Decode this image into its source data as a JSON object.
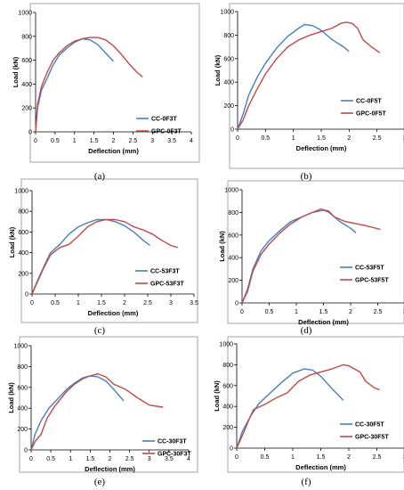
{
  "figure": {
    "captions": [
      "(a)",
      "(b)",
      "(c)",
      "(d)",
      "(e)",
      "(f)"
    ]
  },
  "colors": {
    "blue": "#4a7ebb",
    "red": "#be4b48",
    "frame": "#a6a6a6",
    "axis": "#000000"
  },
  "chart_data": [
    {
      "type": "line",
      "caption": "(a)",
      "xlabel": "Deflection (mm)",
      "ylabel": "Load (kN)",
      "xlim": [
        0,
        4
      ],
      "ylim": [
        0,
        1000
      ],
      "xticks": [
        "0",
        "0.5",
        "1",
        "1.5",
        "2",
        "2.5",
        "3",
        "3.5",
        "4"
      ],
      "yticks": [
        "0",
        "200",
        "400",
        "600",
        "800",
        "1000"
      ],
      "legend": "right",
      "series": [
        {
          "name": "CC-0F3T",
          "color": "blue",
          "x": [
            0,
            0.05,
            0.15,
            0.3,
            0.45,
            0.6,
            0.8,
            1.0,
            1.2,
            1.4,
            1.6,
            1.8,
            2.0
          ],
          "y": [
            0,
            200,
            350,
            450,
            560,
            640,
            700,
            750,
            780,
            770,
            730,
            660,
            590
          ]
        },
        {
          "name": "GPC-0F3T",
          "color": "red",
          "x": [
            0,
            0.05,
            0.15,
            0.3,
            0.45,
            0.6,
            0.8,
            1.0,
            1.2,
            1.4,
            1.6,
            1.8,
            2.0,
            2.2,
            2.4,
            2.6,
            2.75
          ],
          "y": [
            0,
            230,
            380,
            500,
            600,
            660,
            720,
            760,
            780,
            790,
            790,
            770,
            720,
            650,
            570,
            500,
            460
          ]
        }
      ]
    },
    {
      "type": "line",
      "caption": "(b)",
      "xlabel": "Deflection (mm)",
      "ylabel": "Load (kN)",
      "xlim": [
        0,
        3
      ],
      "ylim": [
        0,
        1000
      ],
      "xticks": [
        "0",
        "0.5",
        "1",
        "1.5",
        "2",
        "2.5",
        "3"
      ],
      "yticks": [
        "0",
        "200",
        "400",
        "600",
        "800",
        "1000"
      ],
      "legend": "right",
      "series": [
        {
          "name": "CC-0F5T",
          "color": "blue",
          "x": [
            0,
            0.1,
            0.2,
            0.35,
            0.5,
            0.7,
            0.9,
            1.1,
            1.2,
            1.35,
            1.5,
            1.7,
            1.9,
            2.0
          ],
          "y": [
            0,
            130,
            290,
            440,
            560,
            690,
            790,
            860,
            890,
            880,
            840,
            760,
            700,
            660
          ]
        },
        {
          "name": "GPC-0F5T",
          "color": "red",
          "x": [
            0,
            0.1,
            0.2,
            0.35,
            0.5,
            0.7,
            0.9,
            1.1,
            1.3,
            1.5,
            1.7,
            1.85,
            1.95,
            2.05,
            2.15,
            2.25,
            2.4,
            2.55
          ],
          "y": [
            0,
            80,
            200,
            340,
            470,
            600,
            700,
            760,
            800,
            830,
            860,
            900,
            910,
            900,
            860,
            760,
            700,
            650
          ]
        }
      ]
    },
    {
      "type": "line",
      "caption": "(c)",
      "xlabel": "Deflection (mm)",
      "ylabel": "Load (kN)",
      "xlim": [
        0,
        3.5
      ],
      "ylim": [
        0,
        1000
      ],
      "xticks": [
        "0",
        "0.5",
        "1",
        "1.5",
        "2",
        "2.5",
        "3",
        "3.5"
      ],
      "yticks": [
        "0",
        "200",
        "400",
        "600",
        "800",
        "1000"
      ],
      "legend": "right",
      "series": [
        {
          "name": "CC-53F3T",
          "color": "blue",
          "x": [
            0,
            0.1,
            0.25,
            0.4,
            0.6,
            0.8,
            1.0,
            1.2,
            1.4,
            1.6,
            1.8,
            2.0,
            2.2,
            2.4,
            2.55
          ],
          "y": [
            0,
            110,
            260,
            400,
            480,
            580,
            650,
            690,
            720,
            720,
            700,
            660,
            600,
            520,
            470
          ]
        },
        {
          "name": "GPC-53F3T",
          "color": "red",
          "x": [
            0,
            0.1,
            0.25,
            0.4,
            0.6,
            0.8,
            1.0,
            1.2,
            1.4,
            1.6,
            1.8,
            2.0,
            2.2,
            2.4,
            2.6,
            2.8,
            3.0,
            3.15
          ],
          "y": [
            0,
            100,
            250,
            380,
            450,
            480,
            560,
            650,
            700,
            720,
            720,
            700,
            650,
            620,
            580,
            520,
            470,
            450
          ]
        }
      ]
    },
    {
      "type": "line",
      "caption": "(d)",
      "xlabel": "Deflection (mm)",
      "ylabel": "Load (kN)",
      "xlim": [
        0,
        3
      ],
      "ylim": [
        0,
        1000
      ],
      "xticks": [
        "0",
        "0.5",
        "1",
        "1.5",
        "2",
        "2.5",
        "3"
      ],
      "yticks": [
        "0",
        "200",
        "400",
        "600",
        "800",
        "1000"
      ],
      "legend": "right",
      "series": [
        {
          "name": "CC-53F5T",
          "color": "blue",
          "x": [
            0,
            0.1,
            0.2,
            0.35,
            0.5,
            0.7,
            0.9,
            1.1,
            1.3,
            1.5,
            1.6,
            1.8,
            2.0,
            2.1
          ],
          "y": [
            0,
            120,
            300,
            460,
            550,
            640,
            720,
            760,
            800,
            820,
            800,
            720,
            660,
            620
          ]
        },
        {
          "name": "GPC-53F5T",
          "color": "red",
          "x": [
            0,
            0.1,
            0.2,
            0.35,
            0.5,
            0.7,
            0.9,
            1.1,
            1.3,
            1.45,
            1.6,
            1.7,
            1.9,
            2.1,
            2.3,
            2.55
          ],
          "y": [
            0,
            100,
            280,
            430,
            520,
            620,
            700,
            760,
            800,
            830,
            810,
            760,
            720,
            700,
            680,
            650
          ]
        }
      ]
    },
    {
      "type": "line",
      "caption": "(e)",
      "xlabel": "Deflection (mm)",
      "ylabel": "Load (kN)",
      "xlim": [
        0,
        4
      ],
      "ylim": [
        0,
        1000
      ],
      "xticks": [
        "0",
        "0.5",
        "1",
        "1.5",
        "2",
        "2.5",
        "3",
        "3.5",
        "4"
      ],
      "yticks": [
        "0",
        "200",
        "400",
        "600",
        "800",
        "1000"
      ],
      "legend": "right",
      "series": [
        {
          "name": "CC-30F3T",
          "color": "blue",
          "x": [
            0,
            0.1,
            0.25,
            0.45,
            0.7,
            0.9,
            1.1,
            1.3,
            1.5,
            1.7,
            1.9,
            2.1,
            2.35
          ],
          "y": [
            0,
            150,
            280,
            400,
            500,
            580,
            640,
            690,
            710,
            700,
            660,
            580,
            470
          ]
        },
        {
          "name": "GPC-30F3T",
          "color": "red",
          "x": [
            0,
            0.1,
            0.25,
            0.4,
            0.6,
            0.9,
            1.1,
            1.3,
            1.5,
            1.7,
            1.9,
            2.1,
            2.4,
            2.7,
            3.0,
            3.35
          ],
          "y": [
            0,
            80,
            150,
            300,
            420,
            560,
            630,
            680,
            710,
            730,
            700,
            630,
            580,
            500,
            430,
            410
          ]
        }
      ]
    },
    {
      "type": "line",
      "caption": "(f)",
      "xlabel": "Deflection (mm)",
      "ylabel": "Load (kN)",
      "xlim": [
        0,
        3
      ],
      "ylim": [
        0,
        1000
      ],
      "xticks": [
        "0",
        "0.5",
        "1",
        "1.5",
        "2",
        "2.5",
        "3"
      ],
      "yticks": [
        "0",
        "200",
        "400",
        "600",
        "800",
        "1000"
      ],
      "legend": "right",
      "series": [
        {
          "name": "CC-30F5T",
          "color": "blue",
          "x": [
            0,
            0.1,
            0.25,
            0.4,
            0.6,
            0.8,
            1.0,
            1.2,
            1.35,
            1.5,
            1.7,
            1.9
          ],
          "y": [
            0,
            160,
            310,
            430,
            530,
            630,
            720,
            760,
            750,
            690,
            570,
            460
          ]
        },
        {
          "name": "GPC-30F5T",
          "color": "red",
          "x": [
            0,
            0.1,
            0.2,
            0.3,
            0.5,
            0.7,
            0.9,
            1.1,
            1.3,
            1.5,
            1.7,
            1.9,
            2.0,
            2.1,
            2.2,
            2.3,
            2.45,
            2.55
          ],
          "y": [
            0,
            120,
            250,
            370,
            420,
            480,
            530,
            640,
            700,
            730,
            760,
            800,
            790,
            760,
            730,
            640,
            580,
            560
          ]
        }
      ]
    }
  ]
}
